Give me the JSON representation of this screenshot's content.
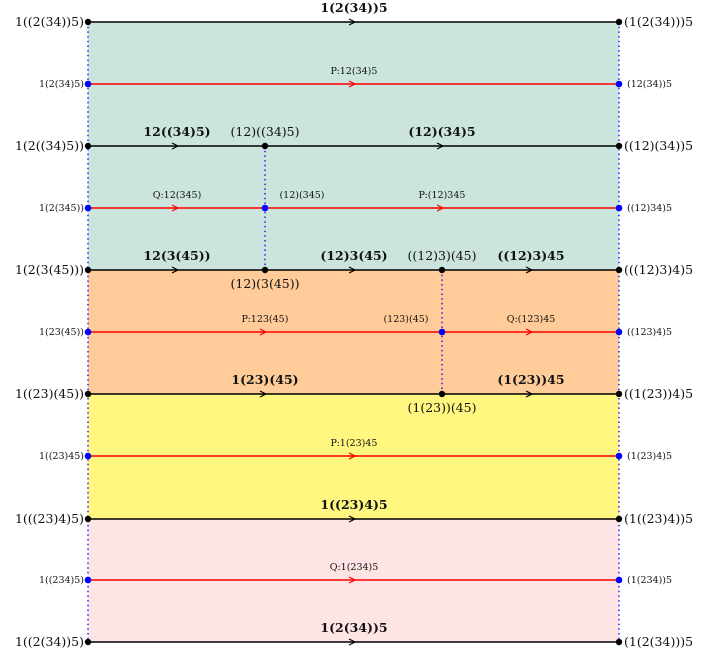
{
  "colors": {
    "teal": "#cce5dc",
    "orange": "#ffcc99",
    "yellow": "#fff780",
    "pink": "#ffe4e6",
    "black_edge": "#000000",
    "red_edge": "#ff0000",
    "blue_vertex": "#0000ff",
    "black_vertex": "#000000"
  },
  "rows": [
    {
      "id": "r0",
      "color": "black",
      "left": "1((2(34))5)",
      "right": "(1(2(34)))5",
      "mid": [
        {
          "text": "1(2(34))5",
          "bold": true,
          "pos": "top"
        }
      ]
    },
    {
      "id": "r1",
      "color": "red",
      "left": "1(2(34)5)",
      "right": "(12(34))5",
      "mid": [
        {
          "text": "P:12(34)5",
          "bold": false,
          "pos": "top"
        }
      ]
    },
    {
      "id": "r2",
      "color": "black",
      "left": "1(2((34)5))",
      "right": "((12)(34))5",
      "mid": [
        {
          "text": "12((34)5)",
          "bold": true,
          "pos": "top"
        },
        {
          "text": "(12)((34)5)",
          "bold": false,
          "pos": "top"
        },
        {
          "text": "(12)(34)5",
          "bold": true,
          "pos": "top"
        }
      ]
    },
    {
      "id": "r3",
      "color": "red",
      "left": "1(2(345))",
      "right": "((12)34)5",
      "mid": [
        {
          "text": "Q:12(345)",
          "bold": false,
          "pos": "top"
        },
        {
          "text": "(12)(345)",
          "bold": false,
          "pos": "top"
        },
        {
          "text": "P:(12)345",
          "bold": false,
          "pos": "top"
        }
      ]
    },
    {
      "id": "r4",
      "color": "black",
      "left": "1(2(3(45)))",
      "right": "(((12)3)4)5",
      "mid": [
        {
          "text": "12(3(45))",
          "bold": true,
          "pos": "top"
        },
        {
          "text": "(12)(3(45))",
          "bold": false,
          "pos": "bottom"
        },
        {
          "text": "(12)3(45)",
          "bold": true,
          "pos": "top"
        },
        {
          "text": "((12)3)(45)",
          "bold": false,
          "pos": "top"
        },
        {
          "text": "((12)3)45",
          "bold": true,
          "pos": "top"
        }
      ]
    },
    {
      "id": "r5",
      "color": "red",
      "left": "1(23(45))",
      "right": "((123)4)5",
      "mid": [
        {
          "text": "P:123(45)",
          "bold": false,
          "pos": "top"
        },
        {
          "text": "(123)(45)",
          "bold": false,
          "pos": "top"
        },
        {
          "text": "Q:(123)45",
          "bold": false,
          "pos": "top"
        }
      ]
    },
    {
      "id": "r6",
      "color": "black",
      "left": "1((23)(45))",
      "right": "((1(23))4)5",
      "mid": [
        {
          "text": "1(23)(45)",
          "bold": true,
          "pos": "top"
        },
        {
          "text": "(1(23))(45)",
          "bold": false,
          "pos": "bottom"
        },
        {
          "text": "(1(23))45",
          "bold": true,
          "pos": "top"
        }
      ]
    },
    {
      "id": "r7",
      "color": "red",
      "left": "1((23)45)",
      "right": "(1(23)4)5",
      "mid": [
        {
          "text": "P:1(23)45",
          "bold": false,
          "pos": "top"
        }
      ]
    },
    {
      "id": "r8",
      "color": "black",
      "left": "1(((23)4)5)",
      "right": "(1((23)4))5",
      "mid": [
        {
          "text": "1((23)4)5",
          "bold": true,
          "pos": "top"
        }
      ]
    },
    {
      "id": "r9",
      "color": "red",
      "left": "1((234)5)",
      "right": "(1(234))5",
      "mid": [
        {
          "text": "Q:1(234)5",
          "bold": false,
          "pos": "top"
        }
      ]
    },
    {
      "id": "r10",
      "color": "black",
      "left": "1((2(34))5)",
      "right": "(1(2(34)))5",
      "mid": [
        {
          "text": "1(2(34))5",
          "bold": true,
          "pos": "top"
        }
      ]
    }
  ]
}
